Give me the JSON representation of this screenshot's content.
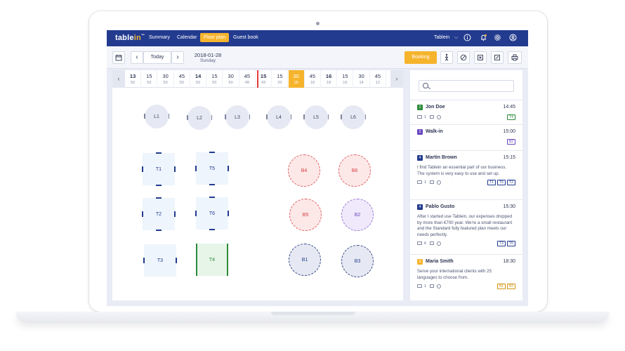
{
  "nav": {
    "logo_main": "table",
    "logo_accent": "in",
    "logo_tm": "™",
    "items": [
      "Summary",
      "Calendar",
      "Floor plan",
      "Guest book"
    ],
    "active": "Floor plan",
    "restaurant": "Tablein",
    "icons": [
      "chevron-down-icon",
      "info-icon",
      "bell-icon",
      "gear-icon",
      "user-icon"
    ]
  },
  "toolbar": {
    "today_label": "Today",
    "prev": "‹",
    "next": "›",
    "date": "2018-01-28",
    "weekday": "Sunday",
    "booking_label": "Booking",
    "icons": [
      "calendar-icon",
      "walk-in-icon",
      "block-icon",
      "close-box-icon",
      "edit-icon",
      "print-icon"
    ]
  },
  "timeline": {
    "slots": [
      {
        "t": "13",
        "n": "50",
        "hour": true
      },
      {
        "t": "15",
        "n": "50"
      },
      {
        "t": "30",
        "n": "50"
      },
      {
        "t": "45",
        "n": "50"
      },
      {
        "t": "14",
        "n": "50",
        "hour": true
      },
      {
        "t": "15",
        "n": "50"
      },
      {
        "t": "30",
        "n": "50"
      },
      {
        "t": "45",
        "n": "48"
      },
      {
        "t": "15",
        "n": "43",
        "hour": true
      },
      {
        "t": "15",
        "n": "33"
      },
      {
        "t": "30",
        "n": "18",
        "selected": true
      },
      {
        "t": "45",
        "n": "18"
      },
      {
        "t": "16",
        "n": "18",
        "hour": true
      },
      {
        "t": "15",
        "n": "16"
      },
      {
        "t": "30",
        "n": "14"
      },
      {
        "t": "45",
        "n": "12"
      }
    ]
  },
  "tables": {
    "lounge": [
      "L1",
      "L2",
      "L3",
      "L4",
      "L5",
      "L6"
    ],
    "square": [
      "T1",
      "T5",
      "T2",
      "T6",
      "T3",
      "T4"
    ],
    "booth": [
      "B4",
      "B6",
      "B5",
      "B2",
      "B1",
      "B3"
    ]
  },
  "reservations": [
    {
      "count": "2",
      "color": "#2c8a3a",
      "name": "Jon Doe",
      "time": "14:45",
      "text": "",
      "msgs": "1",
      "tags": [
        "T4"
      ],
      "tag_color": "#2c8a3a"
    },
    {
      "count": "2",
      "color": "#6a46c0",
      "name": "Walk-in",
      "time": "15:00",
      "text": "",
      "msgs": "",
      "tags": [
        "B2"
      ],
      "tag_color": "#6a46c0"
    },
    {
      "count": "4",
      "color": "#233b8f",
      "name": "Martin Brown",
      "time": "15:15",
      "text": "I find Tablein an essential part of our business. The system is very easy to use and set up.",
      "msgs": "1",
      "tags": [
        "T1",
        "T5",
        "T2"
      ],
      "tag_color": "#233b8f"
    },
    {
      "count": "4",
      "color": "#233b8f",
      "name": "Pablo Gusto",
      "time": "15:30",
      "text": "After I started use Tablein, our expenses dropped by more than €700 year. We're a small restaurant and the Standard fully featured plan meets our needs perfectly.",
      "msgs": "6",
      "tags": [
        "T3",
        "T6"
      ],
      "tag_color": "#233b8f"
    },
    {
      "count": "2",
      "color": "#f6b42d",
      "name": "Maria Smith",
      "time": "18:30",
      "text": "Serve your international clients with 25 languages to choose from.",
      "msgs": "1",
      "tags": [
        "B1",
        "B2"
      ],
      "tag_color": "#d49010"
    }
  ]
}
